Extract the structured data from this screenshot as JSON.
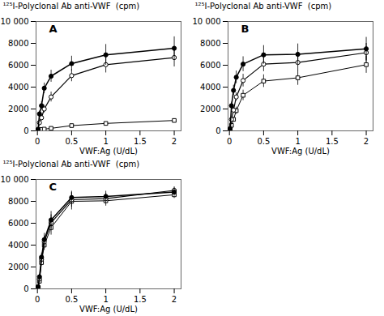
{
  "chart_data": [
    {
      "type": "line",
      "annotations": [
        "A"
      ],
      "xlabel": "VWF:Ag (U/dL)",
      "ylabel": "¹²⁵I-Polyclonal Ab anti-VWF  (cpm)",
      "x": [
        0.01,
        0.03,
        0.06,
        0.1,
        0.2,
        0.5,
        1.0,
        2.0
      ],
      "series": [
        {
          "marker": "open_square",
          "color": "#000000",
          "values": [
            50,
            100,
            130,
            160,
            230,
            480,
            680,
            950
          ],
          "yerr": [
            25,
            40,
            50,
            55,
            65,
            85,
            100,
            120
          ]
        },
        {
          "marker": "open_circle",
          "color": "#000000",
          "values": [
            100,
            750,
            1200,
            2000,
            3100,
            5050,
            6050,
            6700
          ],
          "yerr": [
            60,
            180,
            280,
            350,
            450,
            550,
            750,
            850
          ]
        },
        {
          "marker": "filled_circle",
          "color": "#000000",
          "values": [
            150,
            1550,
            2300,
            3900,
            5000,
            6150,
            6950,
            7550
          ],
          "yerr": [
            80,
            280,
            380,
            480,
            550,
            680,
            950,
            1050
          ]
        }
      ],
      "xlim": [
        -0.02,
        2.1
      ],
      "xticks": [
        0,
        0.5,
        1,
        1.5,
        2
      ],
      "ylim": [
        0,
        10000
      ],
      "yticks": [
        0,
        2000,
        4000,
        6000,
        8000,
        {
          "value": 10000,
          "label": "10 000"
        }
      ],
      "grid": false
    },
    {
      "type": "line",
      "annotations": [
        "B"
      ],
      "xlabel": "VWF:Ag (U/dL)",
      "ylabel": "¹²⁵I-Polyclonal Ab anti-VWF  (cpm)",
      "x": [
        0.01,
        0.03,
        0.06,
        0.1,
        0.2,
        0.5,
        1.0,
        2.0
      ],
      "series": [
        {
          "marker": "open_square",
          "color": "#000000",
          "values": [
            80,
            500,
            1050,
            1850,
            3250,
            4550,
            4850,
            6050
          ],
          "yerr": [
            55,
            140,
            190,
            330,
            480,
            580,
            680,
            780
          ]
        },
        {
          "marker": "open_circle",
          "color": "#000000",
          "values": [
            100,
            1050,
            1900,
            3100,
            4600,
            6100,
            6250,
            7150
          ],
          "yerr": [
            70,
            190,
            290,
            380,
            580,
            680,
            750,
            850
          ]
        },
        {
          "marker": "filled_circle",
          "color": "#000000",
          "values": [
            200,
            2300,
            3700,
            4900,
            6100,
            6950,
            7000,
            7500
          ],
          "yerr": [
            100,
            330,
            480,
            580,
            680,
            850,
            950,
            1050
          ]
        }
      ],
      "xlim": [
        -0.02,
        2.1
      ],
      "xticks": [
        0,
        0.5,
        1,
        1.5,
        2
      ],
      "ylim": [
        0,
        10000
      ],
      "yticks": [
        0,
        2000,
        4000,
        6000,
        8000,
        {
          "value": 10000,
          "label": "10 000"
        }
      ],
      "grid": false
    },
    {
      "type": "line",
      "annotations": [
        "C"
      ],
      "xlabel": "VWF:Ag (U/dL)",
      "ylabel": "¹²⁵I-Polyclonal Ab anti-VWF  (cpm)",
      "x": [
        0.01,
        0.03,
        0.06,
        0.1,
        0.2,
        0.5,
        1.0,
        2.0
      ],
      "series": [
        {
          "marker": "open_square",
          "color": "#000000",
          "values": [
            100,
            700,
            2400,
            4000,
            5600,
            8000,
            8050,
            8600
          ],
          "yerr": [
            65,
            165,
            280,
            480,
            680,
            780,
            480,
            330
          ]
        },
        {
          "marker": "open_circle",
          "color": "#000000",
          "values": [
            150,
            900,
            2700,
            4300,
            6050,
            8150,
            8250,
            9000
          ],
          "yerr": [
            70,
            180,
            330,
            530,
            730,
            680,
            480,
            330
          ]
        },
        {
          "marker": "filled_circle",
          "color": "#000000",
          "values": [
            200,
            1100,
            2900,
            4500,
            6300,
            8350,
            8450,
            8850
          ],
          "yerr": [
            90,
            230,
            380,
            580,
            780,
            580,
            480,
            380
          ]
        }
      ],
      "xlim": [
        -0.02,
        2.1
      ],
      "xticks": [
        0,
        0.5,
        1,
        1.5,
        2
      ],
      "ylim": [
        0,
        10000
      ],
      "yticks": [
        0,
        2000,
        4000,
        6000,
        8000,
        {
          "value": 10000,
          "label": "10 000"
        }
      ],
      "grid": false
    }
  ]
}
